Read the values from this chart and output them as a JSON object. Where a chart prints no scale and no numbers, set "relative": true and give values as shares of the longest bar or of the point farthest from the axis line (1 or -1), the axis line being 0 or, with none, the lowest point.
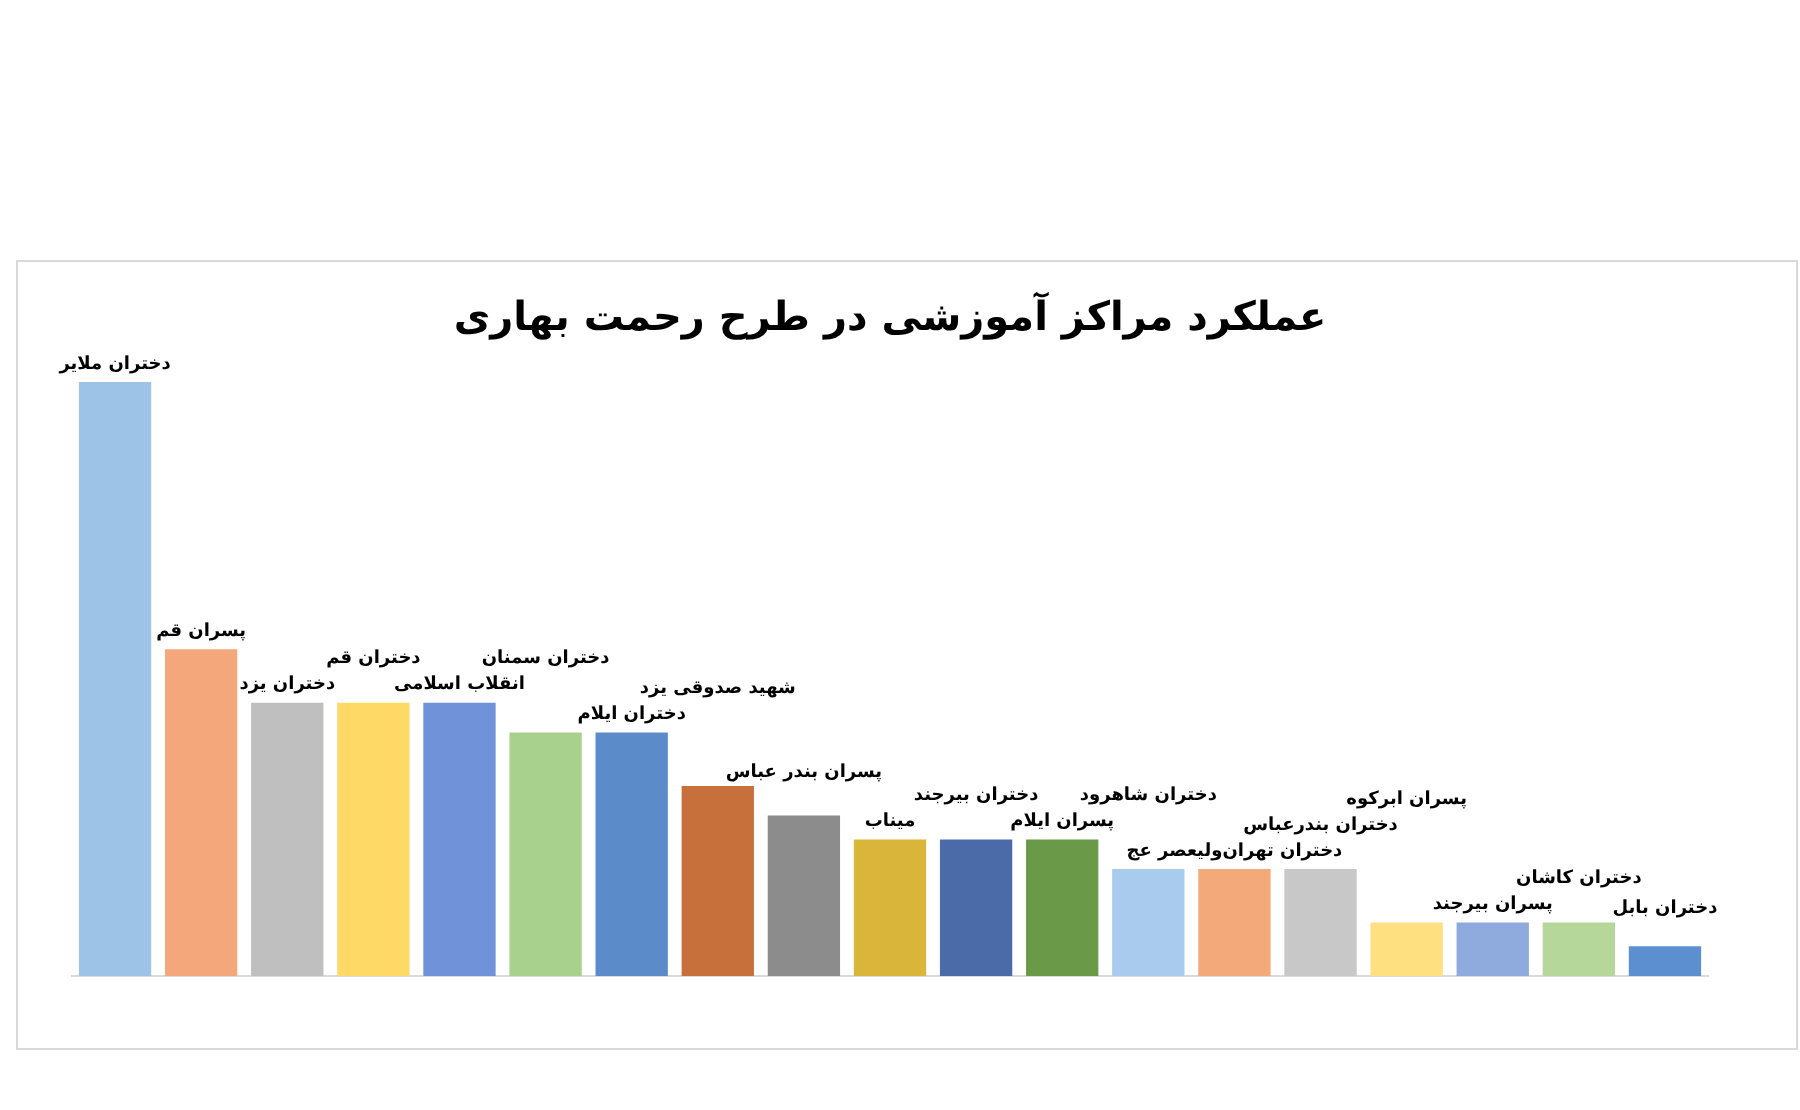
{
  "chart_data": {
    "type": "bar",
    "title": "عملکرد مراکز آموزشی در طرح رحمت بهاری",
    "categories": [
      "دختران ملایر",
      "پسران قم",
      "دختران یزد",
      "دختران قم",
      "انقلاب اسلامی",
      "دختران سمنان",
      "دختران ایلام",
      "شهید صدوقی یزد",
      "پسران بندر عباس",
      "میناب",
      "دختران بیرجند",
      "پسران ایلام",
      "دختران شاهرود",
      "دختران تهران‌ولیعصر عج",
      "دختران بندرعباس",
      "پسران ابرکوه",
      "پسران بیرجند",
      "دختران کاشان",
      "دختران بابل"
    ],
    "values": [
      1,
      0.55,
      0.46,
      0.46,
      0.46,
      0.41,
      0.41,
      0.32,
      0.27,
      0.23,
      0.23,
      0.23,
      0.18,
      0.18,
      0.18,
      0.09,
      0.09,
      0.09,
      0.05
    ],
    "colors": [
      "#9dc3e6",
      "#f4a77a",
      "#bfbfbf",
      "#ffd966",
      "#7092d8",
      "#a9d18e",
      "#5b8bc9",
      "#c8703c",
      "#8c8c8c",
      "#d9b53a",
      "#4a6aa8",
      "#6a9a48",
      "#a8cbee",
      "#f4a97a",
      "#c8c8c8",
      "#ffe080",
      "#8faadc",
      "#b5d89a",
      "#5b8fd0"
    ],
    "relative": true
  }
}
